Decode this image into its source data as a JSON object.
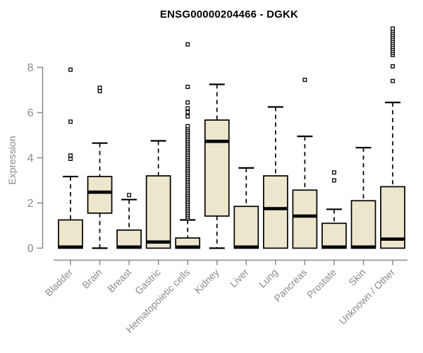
{
  "page": {
    "background": "#ffffff"
  },
  "chart_data": {
    "type": "boxplot",
    "title": "ENSG00000204466 - DGKK",
    "ylabel": "Expression",
    "xlabel": "",
    "yticks": [
      0,
      2,
      4,
      6,
      8
    ],
    "ylim": [
      0,
      9.9
    ],
    "grid": false,
    "legend": "none",
    "x_label_rotation_deg": 45,
    "categories": [
      "Bladder",
      "Brain",
      "Breast",
      "Gastric",
      "Hematopoietic cells",
      "Kidney",
      "Liver",
      "Lung",
      "Pancreas",
      "Prostate",
      "Skin",
      "Unknown / Other"
    ],
    "series": [
      {
        "name": "Bladder",
        "whisker_low": 0,
        "q1": 0,
        "median": 0.05,
        "q3": 1.25,
        "whisker_high": 3.17,
        "outliers": [
          3.95,
          4.1,
          5.6,
          7.9
        ]
      },
      {
        "name": "Brain",
        "whisker_low": 0,
        "q1": 1.55,
        "median": 2.48,
        "q3": 3.17,
        "whisker_high": 4.65,
        "outliers": [
          6.95,
          7.1
        ]
      },
      {
        "name": "Breast",
        "whisker_low": 0,
        "q1": 0,
        "median": 0.05,
        "q3": 0.8,
        "whisker_high": 2.15,
        "outliers": [
          2.35
        ]
      },
      {
        "name": "Gastric",
        "whisker_low": 0,
        "q1": 0,
        "median": 0.27,
        "q3": 3.2,
        "whisker_high": 4.75,
        "outliers": []
      },
      {
        "name": "Hematopoietic cells",
        "whisker_low": 0,
        "q1": 0,
        "median": 0.05,
        "q3": 0.45,
        "whisker_high": 1.25,
        "outliers": [
          1.32,
          1.4,
          1.48,
          1.56,
          1.64,
          1.72,
          1.8,
          1.88,
          1.96,
          2.04,
          2.12,
          2.2,
          2.28,
          2.36,
          2.44,
          2.52,
          2.6,
          2.68,
          2.76,
          2.84,
          2.92,
          3,
          3.08,
          3.16,
          3.24,
          3.32,
          3.4,
          3.48,
          3.56,
          3.64,
          3.72,
          3.8,
          3.88,
          3.96,
          4.04,
          4.12,
          4.2,
          4.28,
          4.36,
          4.44,
          4.52,
          4.6,
          4.68,
          4.76,
          4.84,
          4.92,
          5,
          5.08,
          5.16,
          5.24,
          5.32,
          5.4,
          5.83,
          6.02,
          6.19,
          6.45,
          7.14,
          9.02
        ]
      },
      {
        "name": "Kidney",
        "whisker_low": 0,
        "q1": 1.42,
        "median": 4.73,
        "q3": 5.67,
        "whisker_high": 7.25,
        "outliers": []
      },
      {
        "name": "Liver",
        "whisker_low": 0,
        "q1": 0,
        "median": 0.05,
        "q3": 1.85,
        "whisker_high": 3.55,
        "outliers": []
      },
      {
        "name": "Lung",
        "whisker_low": 0,
        "q1": 0,
        "median": 1.75,
        "q3": 3.2,
        "whisker_high": 6.25,
        "outliers": []
      },
      {
        "name": "Pancreas",
        "whisker_low": 0,
        "q1": 0,
        "median": 1.42,
        "q3": 2.57,
        "whisker_high": 4.95,
        "outliers": [
          7.45
        ]
      },
      {
        "name": "Prostate",
        "whisker_low": 0,
        "q1": 0,
        "median": 0.05,
        "q3": 1.1,
        "whisker_high": 1.72,
        "outliers": [
          3.0,
          3.35
        ]
      },
      {
        "name": "Skin",
        "whisker_low": 0,
        "q1": 0,
        "median": 0.05,
        "q3": 2.1,
        "whisker_high": 4.45,
        "outliers": []
      },
      {
        "name": "Unknown / Other",
        "whisker_low": 0,
        "q1": 0,
        "median": 0.4,
        "q3": 2.72,
        "whisker_high": 6.45,
        "outliers": [
          7.4,
          8.05,
          8.55,
          8.64,
          8.73,
          8.82,
          8.91,
          9.0,
          9.09,
          9.18,
          9.27,
          9.36,
          9.45,
          9.54,
          9.63,
          9.72
        ]
      }
    ],
    "colors": {
      "box_fill": "#EBE6CC",
      "box_border": "#000000",
      "median": "#000000",
      "whisker": "#000000",
      "outlier_stroke": "#000000",
      "outlier_fill": "#FFFFFF",
      "axis": "#8B8B8B",
      "tick_label": "#8B8B8B",
      "title": "#000000"
    }
  }
}
